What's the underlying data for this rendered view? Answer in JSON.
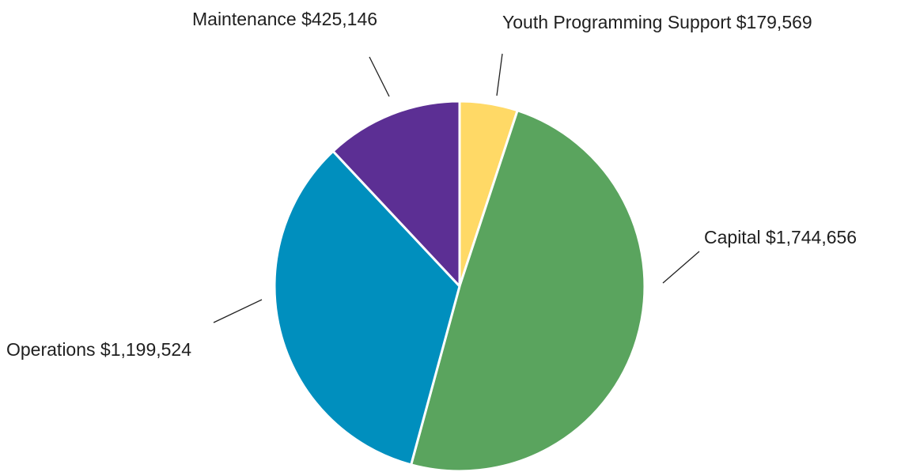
{
  "chart_data": {
    "type": "pie",
    "title": "",
    "start_angle_deg": 0,
    "direction": "clockwise",
    "slices": [
      {
        "label": "Youth Programming Support",
        "value_label": "$179,569",
        "value": 179569,
        "color": "#FFD966"
      },
      {
        "label": "Capital",
        "value_label": "$1,744,656",
        "value": 1744656,
        "color": "#5AA45E"
      },
      {
        "label": "Operations",
        "value_label": "$1,199,524",
        "value": 1199524,
        "color": "#008FBE"
      },
      {
        "label": "Maintenance",
        "value_label": "$425,146",
        "value": 425146,
        "color": "#5C2F94"
      }
    ],
    "legend": "none",
    "labels_position": "outside with leader lines"
  }
}
